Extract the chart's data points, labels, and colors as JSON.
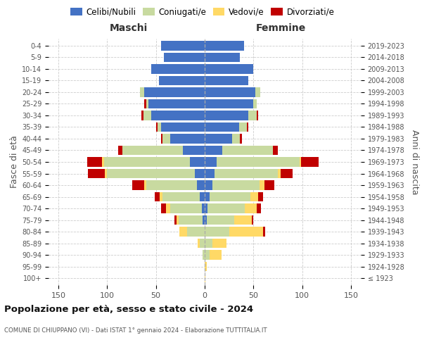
{
  "age_groups": [
    "100+",
    "95-99",
    "90-94",
    "85-89",
    "80-84",
    "75-79",
    "70-74",
    "65-69",
    "60-64",
    "55-59",
    "50-54",
    "45-49",
    "40-44",
    "35-39",
    "30-34",
    "25-29",
    "20-24",
    "15-19",
    "10-14",
    "5-9",
    "0-4"
  ],
  "birth_years": [
    "≤ 1923",
    "1924-1928",
    "1929-1933",
    "1934-1938",
    "1939-1943",
    "1944-1948",
    "1949-1953",
    "1954-1958",
    "1959-1963",
    "1964-1968",
    "1969-1973",
    "1974-1978",
    "1979-1983",
    "1984-1988",
    "1989-1993",
    "1994-1998",
    "1999-2003",
    "2004-2008",
    "2009-2013",
    "2014-2018",
    "2019-2023"
  ],
  "colors": {
    "celibi": "#4472C4",
    "coniugati": "#c8daa0",
    "vedovi": "#FFD966",
    "divorziati": "#C00000"
  },
  "maschi": {
    "celibi": [
      0,
      0,
      0,
      0,
      0,
      2,
      3,
      5,
      8,
      10,
      15,
      22,
      35,
      45,
      55,
      58,
      62,
      47,
      55,
      42,
      45
    ],
    "coniugati": [
      0,
      0,
      2,
      5,
      18,
      25,
      32,
      38,
      52,
      90,
      88,
      62,
      8,
      3,
      8,
      2,
      4,
      0,
      0,
      0,
      0
    ],
    "vedovi": [
      0,
      0,
      0,
      2,
      8,
      2,
      5,
      3,
      2,
      2,
      2,
      0,
      0,
      0,
      0,
      0,
      0,
      0,
      0,
      0,
      0
    ],
    "divorziati": [
      0,
      0,
      0,
      0,
      0,
      2,
      5,
      5,
      12,
      18,
      15,
      5,
      2,
      2,
      2,
      2,
      0,
      0,
      0,
      0,
      0
    ]
  },
  "femmine": {
    "celibi": [
      0,
      0,
      0,
      0,
      0,
      2,
      3,
      5,
      8,
      10,
      12,
      18,
      28,
      35,
      45,
      50,
      52,
      45,
      50,
      36,
      40
    ],
    "coniugati": [
      0,
      0,
      5,
      8,
      25,
      28,
      38,
      42,
      48,
      65,
      85,
      52,
      8,
      8,
      8,
      3,
      5,
      0,
      0,
      0,
      0
    ],
    "vedovi": [
      1,
      2,
      12,
      14,
      35,
      18,
      12,
      8,
      5,
      3,
      2,
      0,
      0,
      0,
      0,
      0,
      0,
      0,
      0,
      0,
      0
    ],
    "divorziati": [
      0,
      0,
      0,
      0,
      2,
      2,
      5,
      5,
      10,
      12,
      18,
      5,
      2,
      2,
      2,
      0,
      0,
      0,
      0,
      0,
      0
    ]
  },
  "title": "Popolazione per età, sesso e stato civile - 2024",
  "subtitle": "COMUNE DI CHIUPPANO (VI) - Dati ISTAT 1° gennaio 2024 - Elaborazione TUTTITALIA.IT",
  "xlabel_maschi": "Maschi",
  "xlabel_femmine": "Femmine",
  "ylabel_left": "Fasce di età",
  "ylabel_right": "Anni di nascita",
  "xlim": 160,
  "legend_labels": [
    "Celibi/Nubili",
    "Coniugati/e",
    "Vedovi/e",
    "Divorziati/e"
  ]
}
